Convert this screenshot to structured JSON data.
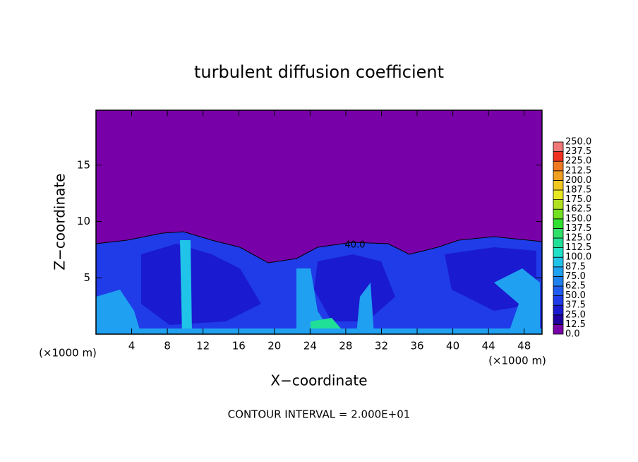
{
  "chart_data": {
    "type": "contour",
    "title": "turbulent diffusion coefficient",
    "xlabel": "X−coordinate",
    "ylabel": "Z−coordinate",
    "x_unit": "(×1000 m)",
    "annotation": "CONTOUR INTERVAL = 2.000E+01",
    "contour_labels": [
      "40.0"
    ],
    "xlim": [
      0,
      50
    ],
    "ylim": [
      0,
      20
    ],
    "xticks": [
      4,
      8,
      12,
      16,
      20,
      24,
      28,
      32,
      36,
      40,
      44,
      48
    ],
    "yticks": [
      5,
      10,
      15
    ],
    "colorbar": {
      "levels": [
        {
          "value": 0,
          "label": "0.0"
        },
        {
          "value": 12.5,
          "label": "12.5"
        },
        {
          "value": 25,
          "label": "25.0"
        },
        {
          "value": 37.5,
          "label": "37.5"
        },
        {
          "value": 50,
          "label": "50.0"
        },
        {
          "value": 62.5,
          "label": "62.5"
        },
        {
          "value": 75,
          "label": "75.0"
        },
        {
          "value": 87.5,
          "label": "87.5"
        },
        {
          "value": 100,
          "label": "100.0"
        },
        {
          "value": 112.5,
          "label": "112.5"
        },
        {
          "value": 125,
          "label": "125.0"
        },
        {
          "value": 137.5,
          "label": "137.5"
        },
        {
          "value": 150,
          "label": "150.0"
        },
        {
          "value": 162.5,
          "label": "162.5"
        },
        {
          "value": 175,
          "label": "175.0"
        },
        {
          "value": 187.5,
          "label": "187.5"
        },
        {
          "value": 200,
          "label": "200.0"
        },
        {
          "value": 212.5,
          "label": "212.5"
        },
        {
          "value": 225,
          "label": "225.0"
        },
        {
          "value": 237.5,
          "label": "237.5"
        },
        {
          "value": 250,
          "label": "250.0"
        }
      ],
      "colors": [
        "#7800a8",
        "#2000a0",
        "#1a1ad0",
        "#1f3ce8",
        "#205cf0",
        "#1f80f0",
        "#20a0f0",
        "#20c4e8",
        "#20e0c8",
        "#20e098",
        "#30e068",
        "#30e030",
        "#70e020",
        "#b0e020",
        "#e8e820",
        "#f0c820",
        "#f0a020",
        "#f07820",
        "#f03020",
        "#f07878"
      ]
    }
  }
}
